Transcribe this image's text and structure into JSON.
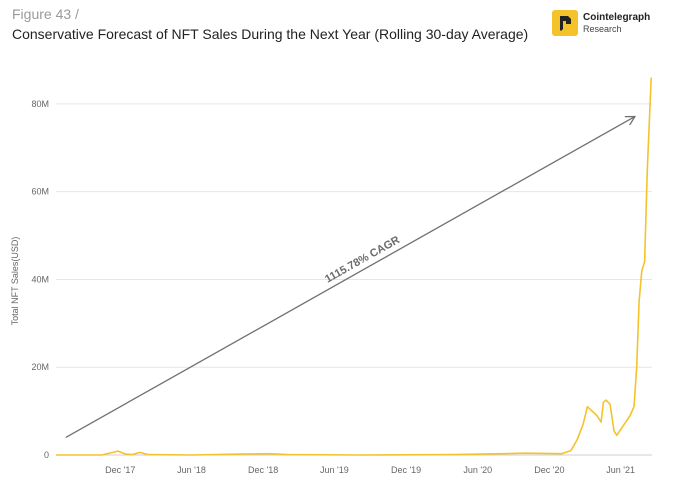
{
  "header": {
    "figure_label": "Figure 43 /",
    "title": "Conservative Forecast of NFT Sales During the Next Year (Rolling 30-day Average)"
  },
  "logo": {
    "name": "Cointelegraph",
    "sub": "Research",
    "icon": "cointelegraph-logo-icon",
    "color": "#f4c22b"
  },
  "chart_data": {
    "type": "line",
    "title": "Conservative Forecast of NFT Sales During the Next Year (Rolling 30-day Average)",
    "xlabel": "",
    "ylabel": "Total NFT Sales(USD)",
    "ylim": [
      0,
      90000000
    ],
    "xlim": [
      "2017-06-20",
      "2021-08-20"
    ],
    "y_ticks": [
      {
        "value": 0,
        "label": "0"
      },
      {
        "value": 20000000,
        "label": "20M"
      },
      {
        "value": 40000000,
        "label": "40M"
      },
      {
        "value": 60000000,
        "label": "60M"
      },
      {
        "value": 80000000,
        "label": "80M"
      }
    ],
    "x_ticks": [
      {
        "value": "2017-12-01",
        "label": "Dec '17"
      },
      {
        "value": "2018-06-01",
        "label": "Jun '18"
      },
      {
        "value": "2018-12-01",
        "label": "Dec '18"
      },
      {
        "value": "2019-06-01",
        "label": "Jun '19"
      },
      {
        "value": "2019-12-01",
        "label": "Dec '19"
      },
      {
        "value": "2020-06-01",
        "label": "Jun '20"
      },
      {
        "value": "2020-12-01",
        "label": "Dec '20"
      },
      {
        "value": "2021-06-01",
        "label": "Jun '21"
      }
    ],
    "grid": {
      "horizontal": true,
      "vertical": false
    },
    "series": [
      {
        "color": "#f5c22a",
        "points": [
          [
            "2017-06-20",
            0
          ],
          [
            "2017-10-15",
            0
          ],
          [
            "2017-11-25",
            900000
          ],
          [
            "2017-12-15",
            200000
          ],
          [
            "2018-01-01",
            100000
          ],
          [
            "2018-01-20",
            600000
          ],
          [
            "2018-02-10",
            100000
          ],
          [
            "2018-06-01",
            0
          ],
          [
            "2018-10-01",
            200000
          ],
          [
            "2018-12-15",
            300000
          ],
          [
            "2019-02-01",
            100000
          ],
          [
            "2019-08-01",
            0
          ],
          [
            "2020-04-01",
            100000
          ],
          [
            "2020-10-01",
            400000
          ],
          [
            "2021-01-01",
            300000
          ],
          [
            "2021-01-25",
            1000000
          ],
          [
            "2021-02-10",
            3500000
          ],
          [
            "2021-02-25",
            7000000
          ],
          [
            "2021-03-08",
            11000000
          ],
          [
            "2021-03-20",
            10000000
          ],
          [
            "2021-04-01",
            9000000
          ],
          [
            "2021-04-12",
            7500000
          ],
          [
            "2021-04-18",
            12000000
          ],
          [
            "2021-04-25",
            12500000
          ],
          [
            "2021-05-05",
            11500000
          ],
          [
            "2021-05-15",
            5500000
          ],
          [
            "2021-05-22",
            4500000
          ],
          [
            "2021-06-10",
            7000000
          ],
          [
            "2021-06-25",
            9000000
          ],
          [
            "2021-07-05",
            11000000
          ],
          [
            "2021-07-12",
            20000000
          ],
          [
            "2021-07-18",
            35000000
          ],
          [
            "2021-07-25",
            42000000
          ],
          [
            "2021-08-01",
            44000000
          ],
          [
            "2021-08-08",
            65000000
          ],
          [
            "2021-08-18",
            86000000
          ]
        ]
      }
    ],
    "annotations": [
      {
        "type": "arrow",
        "text": "1115.78% CAGR",
        "from": [
          "2017-07-15",
          4000000
        ],
        "to": [
          "2021-07-05",
          77000000
        ],
        "color": "#707070"
      }
    ]
  }
}
